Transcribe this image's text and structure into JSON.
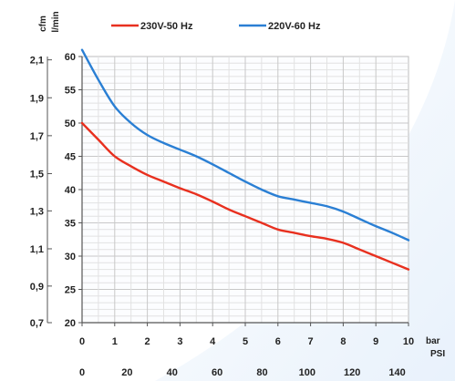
{
  "chart_data": {
    "type": "line",
    "legend": {
      "placement": "top"
    },
    "grid": true,
    "x_axis": {
      "unit": "bar",
      "range": [
        0,
        10
      ],
      "ticks": [
        "0",
        "1",
        "2",
        "3",
        "4",
        "5",
        "6",
        "7",
        "8",
        "9",
        "10"
      ]
    },
    "x2_axis": {
      "unit": "PSI",
      "ticks": [
        "0",
        "20",
        "40",
        "60",
        "80",
        "100",
        "120",
        "140"
      ],
      "tick_bar_values": [
        0,
        1.379,
        2.758,
        4.137,
        5.516,
        6.895,
        8.274,
        9.653
      ]
    },
    "y_axis": {
      "unit": "l/min",
      "range": [
        20,
        60
      ],
      "ticks": [
        "20",
        "25",
        "30",
        "35",
        "40",
        "45",
        "50",
        "55",
        "60"
      ]
    },
    "y2_axis": {
      "unit": "cfm",
      "ticks": [
        "0,7",
        "0,9",
        "1,1",
        "1,3",
        "1,5",
        "1,7",
        "1,9",
        "2,1"
      ],
      "tick_lmin_values": [
        20,
        25.5,
        31.1,
        36.8,
        42.4,
        48.1,
        53.8,
        59.5
      ]
    },
    "series": [
      {
        "name": "230V-50 Hz",
        "color": "#e8301f",
        "x": [
          0,
          0.5,
          1,
          1.5,
          2,
          2.5,
          3,
          3.5,
          4,
          4.5,
          5,
          5.5,
          6,
          6.5,
          7,
          7.5,
          8,
          8.5,
          9,
          9.5,
          10
        ],
        "y": [
          50,
          47.5,
          45,
          43.5,
          42.2,
          41.2,
          40.2,
          39.3,
          38.2,
          37,
          36,
          35,
          34,
          33.5,
          33,
          32.6,
          32,
          31,
          30,
          29,
          28
        ]
      },
      {
        "name": "220V-60 Hz",
        "color": "#2a7fd4",
        "x": [
          0,
          0.5,
          1,
          1.5,
          2,
          2.5,
          3,
          3.5,
          4,
          4.5,
          5,
          5.5,
          6,
          6.5,
          7,
          7.5,
          8,
          8.5,
          9,
          9.5,
          10
        ],
        "y": [
          61,
          56.5,
          52.5,
          50,
          48.2,
          47,
          46,
          45,
          43.8,
          42.5,
          41.2,
          40,
          39,
          38.5,
          38,
          37.5,
          36.7,
          35.6,
          34.5,
          33.5,
          32.4
        ]
      }
    ]
  }
}
